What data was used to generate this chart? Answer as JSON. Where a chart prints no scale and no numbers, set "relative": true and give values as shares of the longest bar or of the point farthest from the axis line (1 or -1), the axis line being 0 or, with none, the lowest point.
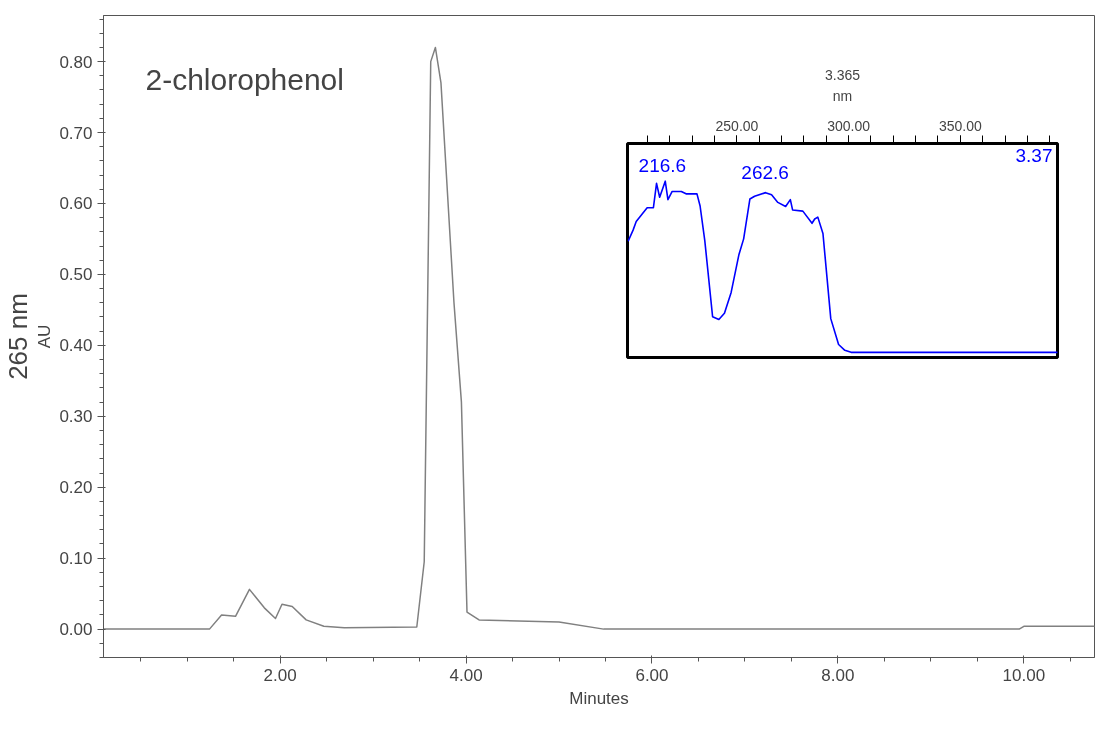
{
  "chart_data": [
    {
      "type": "line",
      "xlabel": "Minutes",
      "ylabel": "AU",
      "color": "#808080",
      "grid": false,
      "annotations": [
        "2-chlorophenol",
        "265 nm"
      ],
      "x": [
        0.1,
        1.24,
        1.37,
        1.52,
        1.67,
        1.83,
        1.95,
        2.02,
        2.13,
        2.28,
        2.47,
        2.69,
        3.47,
        3.55,
        3.62,
        3.67,
        3.73,
        3.87,
        3.95,
        4.01,
        4.14,
        5.0,
        5.48,
        9.95,
        10.0,
        10.76
      ],
      "values": [
        0.0,
        0.0,
        0.02,
        0.018,
        0.056,
        0.03,
        0.015,
        0.035,
        0.032,
        0.013,
        0.004,
        0.002,
        0.003,
        0.095,
        0.8,
        0.82,
        0.77,
        0.46,
        0.32,
        0.024,
        0.013,
        0.01,
        0.0,
        0.0,
        0.004,
        0.004
      ],
      "xlim": [
        0.1,
        10.76
      ],
      "ylim": [
        -0.04,
        0.865
      ],
      "xticks": [
        {
          "value": 2,
          "label": "2.00"
        },
        {
          "value": 4,
          "label": "4.00"
        },
        {
          "value": 6,
          "label": "6.00"
        },
        {
          "value": 8,
          "label": "8.00"
        },
        {
          "value": 10,
          "label": "10.00"
        }
      ],
      "yticks": [
        {
          "value": 0,
          "label": "0.00"
        },
        {
          "value": 0.1,
          "label": "0.10"
        },
        {
          "value": 0.2,
          "label": "0.20"
        },
        {
          "value": 0.3,
          "label": "0.30"
        },
        {
          "value": 0.4,
          "label": "0.40"
        },
        {
          "value": 0.5,
          "label": "0.50"
        },
        {
          "value": 0.6,
          "label": "0.60"
        },
        {
          "value": 0.7,
          "label": "0.70"
        },
        {
          "value": 0.8,
          "label": "0.80"
        }
      ]
    },
    {
      "type": "line",
      "relative": true,
      "xlabel": "nm",
      "color": "#0000ff",
      "grid": false,
      "annotations": [
        {
          "text": "216.6",
          "x": 216.6,
          "y": 1.0
        },
        {
          "text": "262.6",
          "x": 262.6,
          "y": 0.96
        },
        "3.37",
        "3.365"
      ],
      "x": [
        201.4,
        203.5,
        204.9,
        209.8,
        212.6,
        214.0,
        215.4,
        217.9,
        219.1,
        221.0,
        225.1,
        227.2,
        232.1,
        233.5,
        235.6,
        239.1,
        241.9,
        244.4,
        247.4,
        250.9,
        253.0,
        255.8,
        257.9,
        262.8,
        265.5,
        268.3,
        271.8,
        273.9,
        274.9,
        279.5,
        283.6,
        284.8,
        286.2,
        288.5,
        292.0,
        295.5,
        298.3,
        301.1,
        393.5
      ],
      "values": [
        0.653,
        0.714,
        0.764,
        0.845,
        0.845,
        0.987,
        0.906,
        1.0,
        0.892,
        0.94,
        0.94,
        0.926,
        0.926,
        0.855,
        0.653,
        0.208,
        0.192,
        0.228,
        0.35,
        0.572,
        0.663,
        0.896,
        0.912,
        0.933,
        0.92,
        0.876,
        0.852,
        0.892,
        0.832,
        0.825,
        0.754,
        0.779,
        0.79,
        0.694,
        0.197,
        0.046,
        0.012,
        0.0,
        0.0
      ],
      "xlim": [
        201.0,
        393.5
      ],
      "xticks": [
        {
          "value": 250,
          "label": "250.00"
        },
        {
          "value": 300,
          "label": "300.00"
        },
        {
          "value": 350,
          "label": "350.00"
        }
      ]
    }
  ]
}
